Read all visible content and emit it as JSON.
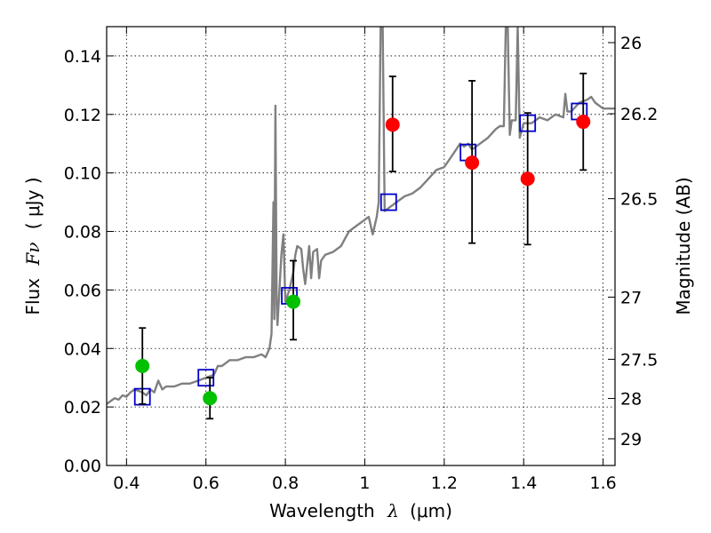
{
  "chart_data": {
    "type": "scatter",
    "xlabel_prefix": "Wavelength",
    "xlabel_symbol": "λ",
    "xlabel_unit": "(μm)",
    "ylabel_prefix": "Flux",
    "ylabel_symbol": "Fν",
    "ylabel_unit": "( μJy )",
    "y2label": "Magnitude (AB)",
    "xlim": [
      0.35,
      1.63
    ],
    "ylim": [
      0.0,
      0.15
    ],
    "grid": true,
    "x_ticks": [
      {
        "value": 0.4,
        "label": "0.4"
      },
      {
        "value": 0.6,
        "label": "0.6"
      },
      {
        "value": 0.8,
        "label": "0.8"
      },
      {
        "value": 1.0,
        "label": "1"
      },
      {
        "value": 1.2,
        "label": "1.2"
      },
      {
        "value": 1.4,
        "label": "1.4"
      },
      {
        "value": 1.6,
        "label": "1.6"
      }
    ],
    "y_ticks": [
      {
        "value": 0.0,
        "label": "0.00"
      },
      {
        "value": 0.02,
        "label": "0.02"
      },
      {
        "value": 0.04,
        "label": "0.04"
      },
      {
        "value": 0.06,
        "label": "0.06"
      },
      {
        "value": 0.08,
        "label": "0.08"
      },
      {
        "value": 0.1,
        "label": "0.10"
      },
      {
        "value": 0.12,
        "label": "0.12"
      },
      {
        "value": 0.14,
        "label": "0.14"
      }
    ],
    "mag_ticks": [
      {
        "value": 26,
        "label": "26"
      },
      {
        "value": 26.2,
        "label": "26.2"
      },
      {
        "value": 26.5,
        "label": "26.5"
      },
      {
        "value": 27,
        "label": "27"
      },
      {
        "value": 27.5,
        "label": "27.5"
      },
      {
        "value": 28,
        "label": "28"
      },
      {
        "value": 29,
        "label": "29"
      }
    ],
    "series": [
      {
        "name": "model-spectrum",
        "kind": "line",
        "color": "#808080",
        "points": [
          [
            0.35,
            0.021
          ],
          [
            0.36,
            0.022
          ],
          [
            0.37,
            0.023
          ],
          [
            0.38,
            0.0225
          ],
          [
            0.39,
            0.024
          ],
          [
            0.4,
            0.0235
          ],
          [
            0.41,
            0.025
          ],
          [
            0.42,
            0.026
          ],
          [
            0.43,
            0.0255
          ],
          [
            0.44,
            0.025
          ],
          [
            0.45,
            0.024
          ],
          [
            0.46,
            0.026
          ],
          [
            0.47,
            0.025
          ],
          [
            0.48,
            0.029
          ],
          [
            0.49,
            0.026
          ],
          [
            0.5,
            0.027
          ],
          [
            0.52,
            0.027
          ],
          [
            0.54,
            0.028
          ],
          [
            0.56,
            0.028
          ],
          [
            0.58,
            0.029
          ],
          [
            0.6,
            0.03
          ],
          [
            0.62,
            0.031
          ],
          [
            0.63,
            0.034
          ],
          [
            0.64,
            0.034
          ],
          [
            0.66,
            0.036
          ],
          [
            0.68,
            0.036
          ],
          [
            0.7,
            0.037
          ],
          [
            0.72,
            0.037
          ],
          [
            0.74,
            0.038
          ],
          [
            0.75,
            0.037
          ],
          [
            0.76,
            0.04
          ],
          [
            0.765,
            0.045
          ],
          [
            0.77,
            0.09
          ],
          [
            0.772,
            0.05
          ],
          [
            0.775,
            0.123
          ],
          [
            0.778,
            0.055
          ],
          [
            0.78,
            0.048
          ],
          [
            0.785,
            0.06
          ],
          [
            0.79,
            0.072
          ],
          [
            0.795,
            0.079
          ],
          [
            0.8,
            0.056
          ],
          [
            0.81,
            0.06
          ],
          [
            0.82,
            0.066
          ],
          [
            0.825,
            0.072
          ],
          [
            0.83,
            0.075
          ],
          [
            0.84,
            0.074
          ],
          [
            0.845,
            0.067
          ],
          [
            0.85,
            0.062
          ],
          [
            0.86,
            0.075
          ],
          [
            0.865,
            0.064
          ],
          [
            0.87,
            0.073
          ],
          [
            0.88,
            0.074
          ],
          [
            0.885,
            0.064
          ],
          [
            0.89,
            0.07
          ],
          [
            0.9,
            0.072
          ],
          [
            0.92,
            0.073
          ],
          [
            0.94,
            0.075
          ],
          [
            0.96,
            0.08
          ],
          [
            0.98,
            0.082
          ],
          [
            1.0,
            0.084
          ],
          [
            1.01,
            0.085
          ],
          [
            1.02,
            0.079
          ],
          [
            1.03,
            0.085
          ],
          [
            1.035,
            0.09
          ],
          [
            1.04,
            0.15
          ],
          [
            1.045,
            0.15
          ],
          [
            1.05,
            0.087
          ],
          [
            1.06,
            0.088
          ],
          [
            1.08,
            0.09
          ],
          [
            1.1,
            0.092
          ],
          [
            1.12,
            0.093
          ],
          [
            1.14,
            0.095
          ],
          [
            1.16,
            0.098
          ],
          [
            1.18,
            0.101
          ],
          [
            1.2,
            0.102
          ],
          [
            1.22,
            0.106
          ],
          [
            1.24,
            0.11
          ],
          [
            1.25,
            0.109
          ],
          [
            1.26,
            0.11
          ],
          [
            1.27,
            0.108
          ],
          [
            1.29,
            0.11
          ],
          [
            1.31,
            0.112
          ],
          [
            1.33,
            0.115
          ],
          [
            1.34,
            0.116
          ],
          [
            1.35,
            0.116
          ],
          [
            1.355,
            0.15
          ],
          [
            1.36,
            0.15
          ],
          [
            1.365,
            0.113
          ],
          [
            1.37,
            0.118
          ],
          [
            1.38,
            0.118
          ],
          [
            1.385,
            0.15
          ],
          [
            1.39,
            0.112
          ],
          [
            1.4,
            0.117
          ],
          [
            1.42,
            0.117
          ],
          [
            1.44,
            0.119
          ],
          [
            1.46,
            0.118
          ],
          [
            1.48,
            0.12
          ],
          [
            1.5,
            0.119
          ],
          [
            1.505,
            0.127
          ],
          [
            1.51,
            0.121
          ],
          [
            1.52,
            0.121
          ],
          [
            1.54,
            0.124
          ],
          [
            1.56,
            0.125
          ],
          [
            1.57,
            0.126
          ],
          [
            1.58,
            0.124
          ],
          [
            1.6,
            0.122
          ],
          [
            1.62,
            0.122
          ],
          [
            1.63,
            0.122
          ]
        ]
      },
      {
        "name": "model-photometry",
        "kind": "open-square",
        "color": "#0000cc",
        "points": [
          [
            0.44,
            0.0235
          ],
          [
            0.6,
            0.03
          ],
          [
            0.81,
            0.058
          ],
          [
            1.06,
            0.09
          ],
          [
            1.26,
            0.107
          ],
          [
            1.41,
            0.117
          ],
          [
            1.54,
            0.121
          ]
        ]
      },
      {
        "name": "optical-detections",
        "kind": "filled-circle",
        "color": "#00c000",
        "points": [
          {
            "x": 0.44,
            "y": 0.034,
            "ylo": 0.021,
            "yhi": 0.047
          },
          {
            "x": 0.61,
            "y": 0.023,
            "ylo": 0.016,
            "yhi": 0.03
          },
          {
            "x": 0.82,
            "y": 0.056,
            "ylo": 0.043,
            "yhi": 0.07
          }
        ]
      },
      {
        "name": "nir-detections",
        "kind": "filled-circle",
        "color": "#ff0000",
        "points": [
          {
            "x": 1.07,
            "y": 0.1165,
            "ylo": 0.1005,
            "yhi": 0.133
          },
          {
            "x": 1.27,
            "y": 0.1035,
            "ylo": 0.076,
            "yhi": 0.1315
          },
          {
            "x": 1.41,
            "y": 0.098,
            "ylo": 0.0755,
            "yhi": 0.1205
          },
          {
            "x": 1.55,
            "y": 0.1175,
            "ylo": 0.101,
            "yhi": 0.134
          }
        ]
      }
    ]
  }
}
